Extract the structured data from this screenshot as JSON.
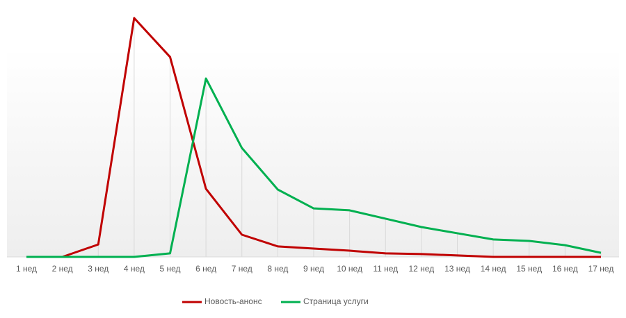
{
  "chart_data": {
    "type": "line",
    "categories": [
      "1 нед",
      "2 нед",
      "3 нед",
      "4 нед",
      "5 нед",
      "6 нед",
      "7 нед",
      "8 нед",
      "9 нед",
      "10 нед",
      "11 нед",
      "12 нед",
      "13 нед",
      "14 нед",
      "15 нед",
      "16 нед",
      "17 нед"
    ],
    "series": [
      {
        "name": "Новость-анонс",
        "color": "#c00000",
        "values": [
          0,
          0,
          5.2,
          100,
          83.7,
          28.5,
          9.3,
          4.4,
          3.5,
          2.6,
          1.5,
          1.2,
          0.6,
          0,
          0,
          0,
          0
        ]
      },
      {
        "name": "Страница услуги",
        "color": "#00b050",
        "values": [
          0,
          0,
          0,
          0,
          1.5,
          74.7,
          45.6,
          28.2,
          20.3,
          19.5,
          16,
          12.5,
          9.9,
          7.3,
          6.7,
          4.9,
          1.7
        ]
      }
    ],
    "ylim": [
      0,
      100
    ],
    "legend": "bottom"
  }
}
